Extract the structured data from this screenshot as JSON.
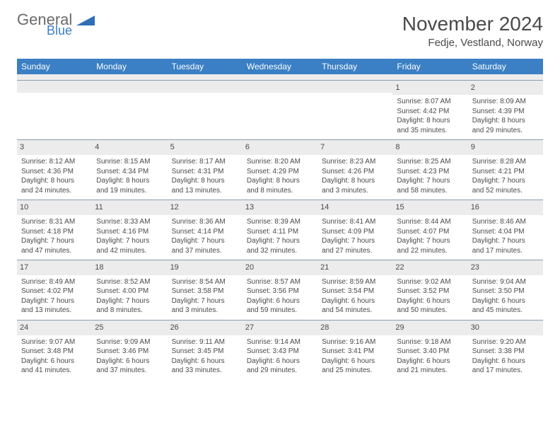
{
  "logo": {
    "word1": "General",
    "word2": "Blue",
    "shape_color": "#2f6fb5"
  },
  "title": "November 2024",
  "location": "Fedje, Vestland, Norway",
  "day_headers": [
    "Sunday",
    "Monday",
    "Tuesday",
    "Wednesday",
    "Thursday",
    "Friday",
    "Saturday"
  ],
  "header_bg": "#3b7fc4",
  "stripe_bg": "#ececec",
  "weeks": [
    [
      {
        "n": "",
        "sr": "",
        "ss": "",
        "dl": ""
      },
      {
        "n": "",
        "sr": "",
        "ss": "",
        "dl": ""
      },
      {
        "n": "",
        "sr": "",
        "ss": "",
        "dl": ""
      },
      {
        "n": "",
        "sr": "",
        "ss": "",
        "dl": ""
      },
      {
        "n": "",
        "sr": "",
        "ss": "",
        "dl": ""
      },
      {
        "n": "1",
        "sr": "Sunrise: 8:07 AM",
        "ss": "Sunset: 4:42 PM",
        "dl": "Daylight: 8 hours and 35 minutes."
      },
      {
        "n": "2",
        "sr": "Sunrise: 8:09 AM",
        "ss": "Sunset: 4:39 PM",
        "dl": "Daylight: 8 hours and 29 minutes."
      }
    ],
    [
      {
        "n": "3",
        "sr": "Sunrise: 8:12 AM",
        "ss": "Sunset: 4:36 PM",
        "dl": "Daylight: 8 hours and 24 minutes."
      },
      {
        "n": "4",
        "sr": "Sunrise: 8:15 AM",
        "ss": "Sunset: 4:34 PM",
        "dl": "Daylight: 8 hours and 19 minutes."
      },
      {
        "n": "5",
        "sr": "Sunrise: 8:17 AM",
        "ss": "Sunset: 4:31 PM",
        "dl": "Daylight: 8 hours and 13 minutes."
      },
      {
        "n": "6",
        "sr": "Sunrise: 8:20 AM",
        "ss": "Sunset: 4:29 PM",
        "dl": "Daylight: 8 hours and 8 minutes."
      },
      {
        "n": "7",
        "sr": "Sunrise: 8:23 AM",
        "ss": "Sunset: 4:26 PM",
        "dl": "Daylight: 8 hours and 3 minutes."
      },
      {
        "n": "8",
        "sr": "Sunrise: 8:25 AM",
        "ss": "Sunset: 4:23 PM",
        "dl": "Daylight: 7 hours and 58 minutes."
      },
      {
        "n": "9",
        "sr": "Sunrise: 8:28 AM",
        "ss": "Sunset: 4:21 PM",
        "dl": "Daylight: 7 hours and 52 minutes."
      }
    ],
    [
      {
        "n": "10",
        "sr": "Sunrise: 8:31 AM",
        "ss": "Sunset: 4:18 PM",
        "dl": "Daylight: 7 hours and 47 minutes."
      },
      {
        "n": "11",
        "sr": "Sunrise: 8:33 AM",
        "ss": "Sunset: 4:16 PM",
        "dl": "Daylight: 7 hours and 42 minutes."
      },
      {
        "n": "12",
        "sr": "Sunrise: 8:36 AM",
        "ss": "Sunset: 4:14 PM",
        "dl": "Daylight: 7 hours and 37 minutes."
      },
      {
        "n": "13",
        "sr": "Sunrise: 8:39 AM",
        "ss": "Sunset: 4:11 PM",
        "dl": "Daylight: 7 hours and 32 minutes."
      },
      {
        "n": "14",
        "sr": "Sunrise: 8:41 AM",
        "ss": "Sunset: 4:09 PM",
        "dl": "Daylight: 7 hours and 27 minutes."
      },
      {
        "n": "15",
        "sr": "Sunrise: 8:44 AM",
        "ss": "Sunset: 4:07 PM",
        "dl": "Daylight: 7 hours and 22 minutes."
      },
      {
        "n": "16",
        "sr": "Sunrise: 8:46 AM",
        "ss": "Sunset: 4:04 PM",
        "dl": "Daylight: 7 hours and 17 minutes."
      }
    ],
    [
      {
        "n": "17",
        "sr": "Sunrise: 8:49 AM",
        "ss": "Sunset: 4:02 PM",
        "dl": "Daylight: 7 hours and 13 minutes."
      },
      {
        "n": "18",
        "sr": "Sunrise: 8:52 AM",
        "ss": "Sunset: 4:00 PM",
        "dl": "Daylight: 7 hours and 8 minutes."
      },
      {
        "n": "19",
        "sr": "Sunrise: 8:54 AM",
        "ss": "Sunset: 3:58 PM",
        "dl": "Daylight: 7 hours and 3 minutes."
      },
      {
        "n": "20",
        "sr": "Sunrise: 8:57 AM",
        "ss": "Sunset: 3:56 PM",
        "dl": "Daylight: 6 hours and 59 minutes."
      },
      {
        "n": "21",
        "sr": "Sunrise: 8:59 AM",
        "ss": "Sunset: 3:54 PM",
        "dl": "Daylight: 6 hours and 54 minutes."
      },
      {
        "n": "22",
        "sr": "Sunrise: 9:02 AM",
        "ss": "Sunset: 3:52 PM",
        "dl": "Daylight: 6 hours and 50 minutes."
      },
      {
        "n": "23",
        "sr": "Sunrise: 9:04 AM",
        "ss": "Sunset: 3:50 PM",
        "dl": "Daylight: 6 hours and 45 minutes."
      }
    ],
    [
      {
        "n": "24",
        "sr": "Sunrise: 9:07 AM",
        "ss": "Sunset: 3:48 PM",
        "dl": "Daylight: 6 hours and 41 minutes."
      },
      {
        "n": "25",
        "sr": "Sunrise: 9:09 AM",
        "ss": "Sunset: 3:46 PM",
        "dl": "Daylight: 6 hours and 37 minutes."
      },
      {
        "n": "26",
        "sr": "Sunrise: 9:11 AM",
        "ss": "Sunset: 3:45 PM",
        "dl": "Daylight: 6 hours and 33 minutes."
      },
      {
        "n": "27",
        "sr": "Sunrise: 9:14 AM",
        "ss": "Sunset: 3:43 PM",
        "dl": "Daylight: 6 hours and 29 minutes."
      },
      {
        "n": "28",
        "sr": "Sunrise: 9:16 AM",
        "ss": "Sunset: 3:41 PM",
        "dl": "Daylight: 6 hours and 25 minutes."
      },
      {
        "n": "29",
        "sr": "Sunrise: 9:18 AM",
        "ss": "Sunset: 3:40 PM",
        "dl": "Daylight: 6 hours and 21 minutes."
      },
      {
        "n": "30",
        "sr": "Sunrise: 9:20 AM",
        "ss": "Sunset: 3:38 PM",
        "dl": "Daylight: 6 hours and 17 minutes."
      }
    ]
  ]
}
